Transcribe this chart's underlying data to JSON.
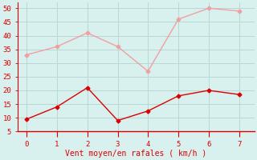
{
  "x": [
    0,
    1,
    2,
    3,
    4,
    5,
    6,
    7
  ],
  "rafales": [
    33,
    36,
    41,
    36,
    27,
    46,
    50,
    49
  ],
  "moyen": [
    9.5,
    14,
    21,
    9,
    12.5,
    18,
    20,
    18.5
  ],
  "rafales_color": "#f0a0a0",
  "moyen_color": "#dd0000",
  "bg_color": "#d8f0ee",
  "grid_color": "#b8d8d4",
  "xlabel": "Vent moyen/en rafales ( km/h )",
  "xlabel_color": "#dd0000",
  "xlabel_fontsize": 7,
  "ylim": [
    5,
    52
  ],
  "xlim": [
    -0.3,
    7.5
  ],
  "yticks": [
    5,
    10,
    15,
    20,
    25,
    30,
    35,
    40,
    45,
    50
  ],
  "xticks": [
    0,
    1,
    2,
    3,
    4,
    5,
    6,
    7
  ],
  "tick_color": "#dd0000",
  "tick_fontsize": 6.5,
  "marker": "D",
  "marker_size": 2.5,
  "line_width": 1.0
}
